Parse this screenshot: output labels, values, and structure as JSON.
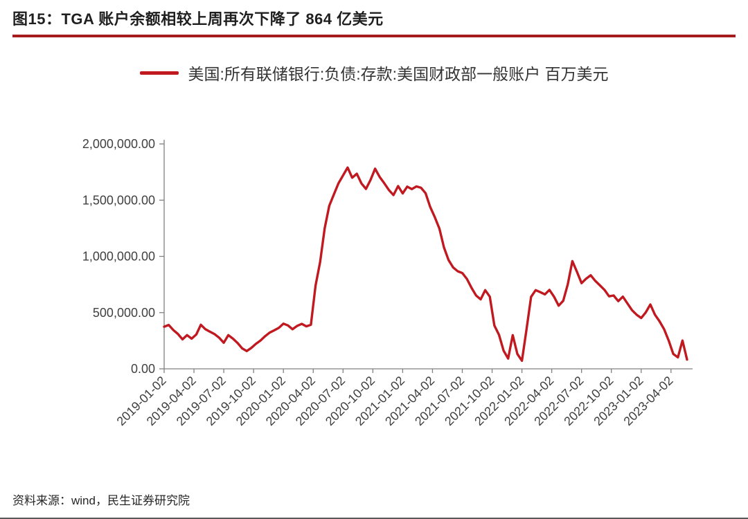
{
  "figure": {
    "title": "图15：TGA 账户余额相较上周再次下降了 864 亿美元",
    "legend": "美国:所有联储银行:负债:存款:美国财政部一般账户 百万美元",
    "source": "资料来源：wind，民生证券研究院"
  },
  "colors": {
    "line": "#c01920",
    "title_underline": "#a61c1c",
    "axis": "#808080",
    "tick_text": "#404040"
  },
  "chart_data": {
    "type": "line",
    "title": "TGA 账户余额",
    "series_name": "美国:所有联储银行:负债:存款:美国财政部一般账户",
    "unit": "百万美元",
    "legend_position": "top",
    "grid": false,
    "x_unit": "weeks since 2019-01-02",
    "x_step": 2,
    "x_max": 228,
    "ylim": [
      0,
      2000000
    ],
    "y_ticks": [
      {
        "value": 0,
        "label": "0.00"
      },
      {
        "value": 500000,
        "label": "500,000.00"
      },
      {
        "value": 1000000,
        "label": "1,000,000.00"
      },
      {
        "value": 1500000,
        "label": "1,500,000.00"
      },
      {
        "value": 2000000,
        "label": "2,000,000.00"
      }
    ],
    "x_ticks": [
      {
        "week": 0,
        "label": "2019-01-02"
      },
      {
        "week": 13,
        "label": "2019-04-02"
      },
      {
        "week": 26,
        "label": "2019-07-02"
      },
      {
        "week": 39,
        "label": "2019-10-02"
      },
      {
        "week": 52,
        "label": "2020-01-02"
      },
      {
        "week": 65,
        "label": "2020-04-02"
      },
      {
        "week": 78,
        "label": "2020-07-02"
      },
      {
        "week": 91,
        "label": "2020-10-02"
      },
      {
        "week": 104,
        "label": "2021-01-02"
      },
      {
        "week": 117,
        "label": "2021-04-02"
      },
      {
        "week": 130,
        "label": "2021-07-02"
      },
      {
        "week": 143,
        "label": "2021-10-02"
      },
      {
        "week": 156,
        "label": "2022-01-02"
      },
      {
        "week": 169,
        "label": "2022-04-02"
      },
      {
        "week": 182,
        "label": "2022-07-02"
      },
      {
        "week": 195,
        "label": "2022-10-02"
      },
      {
        "week": 208,
        "label": "2023-01-02"
      },
      {
        "week": 221,
        "label": "2023-04-02"
      }
    ],
    "values": [
      375000,
      390000,
      345000,
      310000,
      262000,
      300000,
      268000,
      305000,
      392000,
      352000,
      330000,
      308000,
      276000,
      232000,
      300000,
      268000,
      230000,
      182000,
      158000,
      186000,
      222000,
      252000,
      290000,
      322000,
      342000,
      365000,
      402000,
      386000,
      352000,
      382000,
      400000,
      378000,
      392000,
      740000,
      950000,
      1250000,
      1450000,
      1550000,
      1650000,
      1720000,
      1790000,
      1700000,
      1735000,
      1650000,
      1600000,
      1680000,
      1780000,
      1705000,
      1650000,
      1590000,
      1545000,
      1625000,
      1560000,
      1620000,
      1598000,
      1622000,
      1610000,
      1562000,
      1440000,
      1350000,
      1248000,
      1080000,
      968000,
      902000,
      868000,
      852000,
      800000,
      722000,
      652000,
      618000,
      700000,
      642000,
      385000,
      302000,
      162000,
      92000,
      300000,
      132000,
      72000,
      350000,
      640000,
      700000,
      682000,
      662000,
      702000,
      642000,
      562000,
      605000,
      752000,
      958000,
      862000,
      762000,
      802000,
      832000,
      782000,
      742000,
      702000,
      645000,
      652000,
      602000,
      642000,
      582000,
      522000,
      482000,
      452000,
      502000,
      572000,
      482000,
      422000,
      352000,
      252000,
      132000,
      102000,
      252000,
      82000
    ]
  }
}
